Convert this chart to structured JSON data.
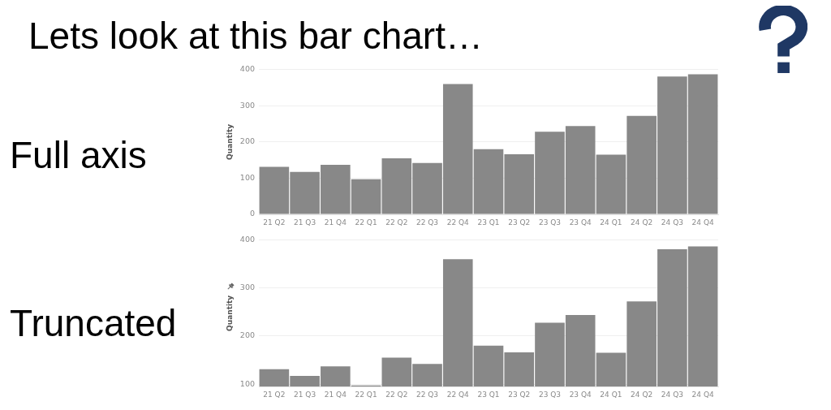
{
  "chart_data": [
    {
      "type": "bar",
      "title": "Lets look at this bar chart…",
      "subtitle": "Full axis",
      "ylabel": "Quantity",
      "categories": [
        "21 Q2",
        "21 Q3",
        "21 Q4",
        "22 Q1",
        "22 Q2",
        "22 Q3",
        "22 Q4",
        "23 Q1",
        "23 Q2",
        "23 Q3",
        "23 Q4",
        "24 Q1",
        "24 Q2",
        "24 Q3",
        "24 Q4"
      ],
      "values": [
        131,
        117,
        137,
        97,
        155,
        142,
        360,
        180,
        166,
        228,
        244,
        165,
        272,
        381,
        387
      ],
      "color": "#888888",
      "ylim": [
        0,
        400
      ],
      "yticks": [
        0,
        100,
        200,
        300,
        400
      ],
      "grid": "y"
    },
    {
      "type": "bar",
      "subtitle": "Truncated",
      "ylabel": "Quantity",
      "categories": [
        "21 Q2",
        "21 Q3",
        "21 Q4",
        "22 Q1",
        "22 Q2",
        "22 Q3",
        "22 Q4",
        "23 Q1",
        "23 Q2",
        "23 Q3",
        "23 Q4",
        "24 Q1",
        "24 Q2",
        "24 Q3",
        "24 Q4"
      ],
      "values": [
        131,
        117,
        137,
        97,
        155,
        142,
        360,
        180,
        166,
        228,
        244,
        165,
        272,
        381,
        387
      ],
      "color": "#888888",
      "ylim": [
        95,
        400
      ],
      "yticks": [
        100,
        200,
        300,
        400
      ],
      "grid": "y"
    }
  ]
}
